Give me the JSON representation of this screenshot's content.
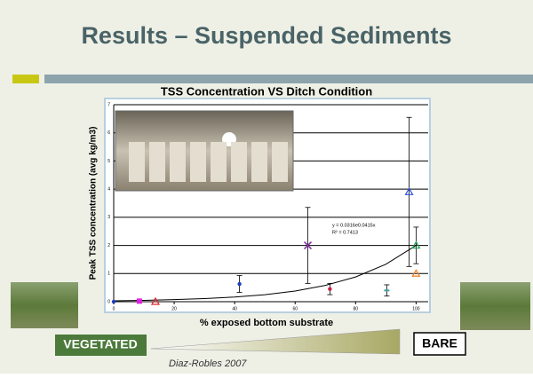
{
  "slide_title": "Results – Suspended Sediments",
  "left_label": "VEGETATED",
  "right_label": "BARE",
  "citation": "Diaz-Robles 2007",
  "chart_data": {
    "type": "scatter",
    "title": "TSS Concentration VS Ditch Condition",
    "xlabel": "% exposed bottom substrate",
    "ylabel": "Peak TSS concentration (avg kg/m3)",
    "x": [
      0,
      8.5,
      13.8,
      41.6,
      64.2,
      71.5,
      90.3,
      97.7,
      100,
      100
    ],
    "values": [
      0,
      0.02,
      0,
      0.63,
      2.0,
      0.45,
      0.4,
      3.9,
      2.0,
      1.0
    ],
    "errors": [
      0,
      0,
      0,
      0.3,
      1.35,
      0.2,
      0.2,
      2.65,
      0.65,
      0
    ],
    "colors": [
      "#1f3fbf",
      "#e020e0",
      "#e02020",
      "#1f3fbf",
      "#8030a0",
      "#c02040",
      "#40a0a0",
      "#3050e0",
      "#20a050",
      "#f08020"
    ],
    "markers": [
      "circle",
      "square",
      "triangle",
      "circle",
      "cross",
      "circle",
      "dash",
      "triangle",
      "triangle",
      "triangle"
    ],
    "xlim": [
      0,
      104
    ],
    "ylim": [
      0,
      7
    ],
    "xticks": [
      0,
      20,
      40,
      60,
      80,
      100
    ],
    "yticks": [
      0,
      1,
      2,
      3,
      4,
      5,
      6,
      7
    ],
    "grid": true,
    "annotations": [
      "y = 0.0316e0.0415x",
      "R² = 0.7413"
    ],
    "trendline": {
      "x": [
        0,
        10,
        20,
        30,
        40,
        50,
        60,
        70,
        80,
        90,
        100
      ],
      "values": [
        0.032,
        0.048,
        0.073,
        0.11,
        0.166,
        0.25,
        0.38,
        0.58,
        0.88,
        1.33,
        2.0
      ]
    }
  }
}
